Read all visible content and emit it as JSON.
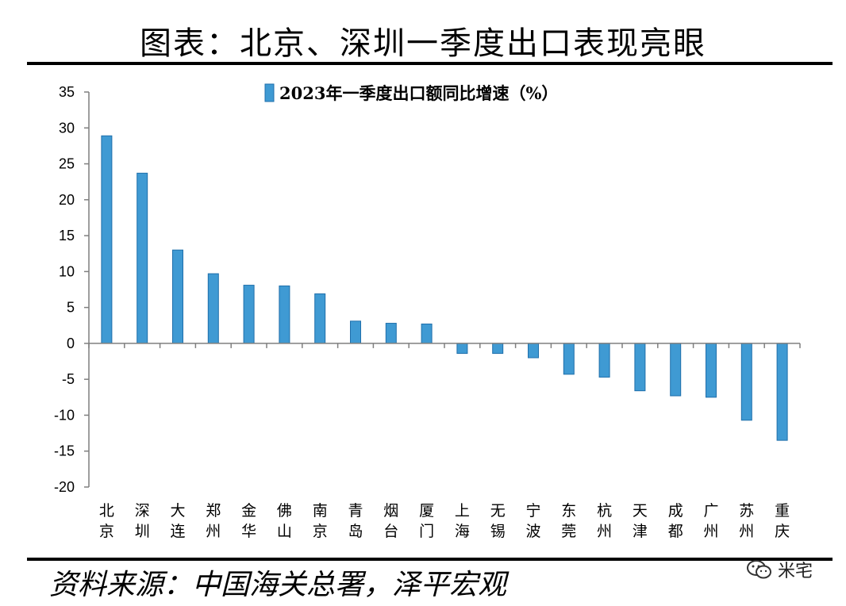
{
  "title": "图表：北京、深圳一季度出口表现亮眼",
  "source": "资料来源：中国海关总署，泽平宏观",
  "watermark": {
    "text": "米宅",
    "icon": "wechat-icon"
  },
  "colors": {
    "bar_fill": "#3f9ad3",
    "bar_edge": "#1f6fab",
    "axis": "#7f7f7f"
  },
  "chart_data": {
    "type": "bar",
    "title": "",
    "xlabel": "",
    "ylabel": "",
    "ylim": [
      -20,
      35
    ],
    "yticks": [
      35,
      30,
      25,
      20,
      15,
      10,
      5,
      0,
      -5,
      -10,
      -15,
      -20
    ],
    "grid": false,
    "legend_position": "top-center",
    "categories": [
      "北京",
      "深圳",
      "大连",
      "郑州",
      "金华",
      "佛山",
      "南京",
      "青岛",
      "烟台",
      "厦门",
      "上海",
      "无锡",
      "宁波",
      "东莞",
      "杭州",
      "天津",
      "成都",
      "广州",
      "苏州",
      "重庆"
    ],
    "series": [
      {
        "name": "2023年一季度出口额同比增速（%）",
        "values": [
          28.9,
          23.7,
          13.0,
          9.7,
          8.1,
          8.0,
          6.9,
          3.1,
          2.8,
          2.7,
          -1.4,
          -1.4,
          -2.0,
          -4.3,
          -4.7,
          -6.6,
          -7.3,
          -7.5,
          -10.7,
          -13.5
        ]
      }
    ]
  }
}
